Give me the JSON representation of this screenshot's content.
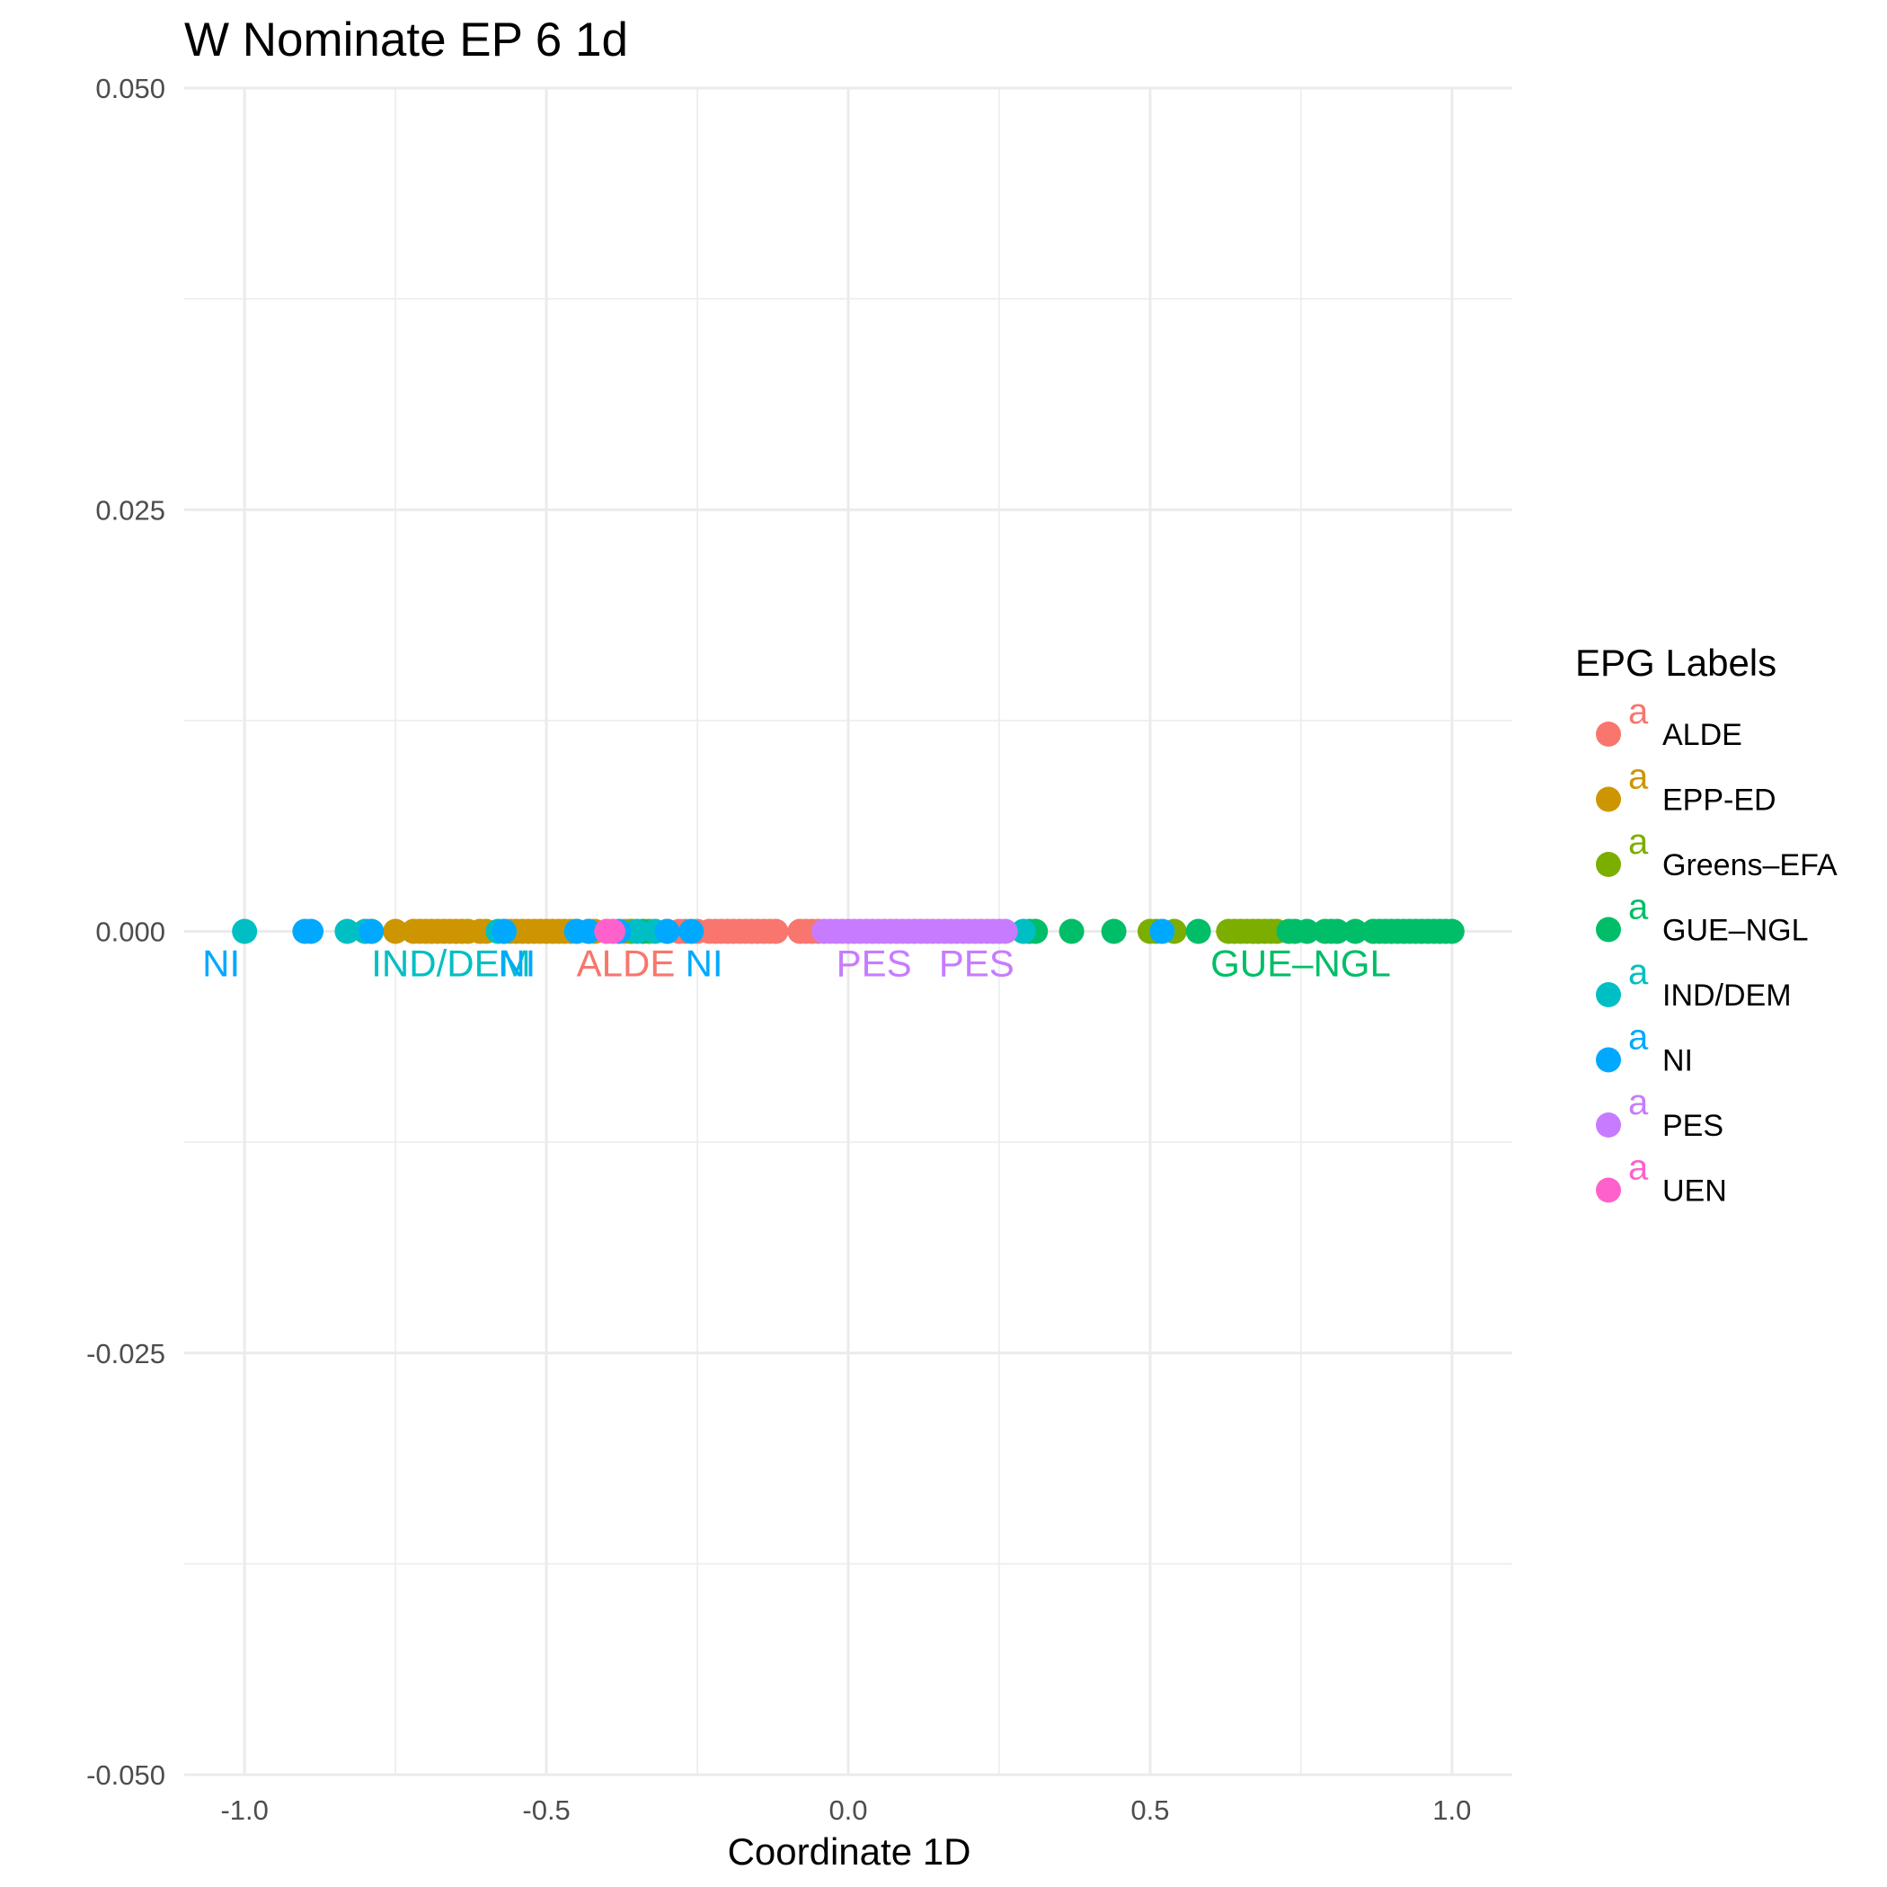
{
  "chart_data": {
    "type": "scatter",
    "title": "W Nominate EP 6 1d",
    "xlabel": "Coordinate 1D",
    "ylabel": "",
    "xlim": [
      -1.1,
      1.1
    ],
    "ylim": [
      -0.05,
      0.05
    ],
    "x_ticks": [
      {
        "value": -1.0,
        "label": "-1.0"
      },
      {
        "value": -0.5,
        "label": "-0.5"
      },
      {
        "value": 0.0,
        "label": "0.0"
      },
      {
        "value": 0.5,
        "label": "0.5"
      },
      {
        "value": 1.0,
        "label": "1.0"
      }
    ],
    "y_ticks": [
      {
        "value": 0.05,
        "label": "0.050"
      },
      {
        "value": 0.025,
        "label": "0.025"
      },
      {
        "value": 0.0,
        "label": "0.000"
      },
      {
        "value": -0.025,
        "label": "-0.025"
      },
      {
        "value": -0.05,
        "label": "-0.050"
      }
    ],
    "grid": true,
    "legend": {
      "title": "EPG Labels",
      "position": "right",
      "glyph": "a"
    },
    "series": [
      {
        "name": "ALDE",
        "color": "#F8766D",
        "x": [
          -0.4,
          -0.37,
          -0.36,
          -0.3,
          -0.28,
          -0.27,
          -0.25,
          -0.23,
          -0.22,
          -0.21,
          -0.2,
          -0.19,
          -0.18,
          -0.17,
          -0.16,
          -0.15,
          -0.14,
          -0.13,
          -0.12,
          -0.08,
          -0.07,
          -0.06,
          -0.05
        ]
      },
      {
        "name": "EPP-ED",
        "color": "#CD9600",
        "x": [
          -0.8,
          -0.79,
          -0.75,
          -0.72,
          -0.71,
          -0.7,
          -0.69,
          -0.68,
          -0.67,
          -0.66,
          -0.65,
          -0.64,
          -0.63,
          -0.61,
          -0.6,
          -0.57,
          -0.56,
          -0.55,
          -0.54,
          -0.53,
          -0.52,
          -0.51,
          -0.5,
          -0.49,
          -0.48,
          -0.47,
          -0.46,
          -0.45,
          -0.43,
          -0.42
        ]
      },
      {
        "name": "Greens–EFA",
        "color": "#7CAE00",
        "x": [
          -0.36,
          -0.33,
          0.5,
          0.51,
          0.54,
          0.63,
          0.64,
          0.65,
          0.66,
          0.67,
          0.68,
          0.69,
          0.7,
          0.71
        ]
      },
      {
        "name": "GUE–NGL",
        "color": "#00BE67",
        "x": [
          -0.34,
          0.3,
          0.31,
          0.37,
          0.44,
          0.58,
          0.73,
          0.74,
          0.76,
          0.79,
          0.8,
          0.81,
          0.84,
          0.87,
          0.88,
          0.89,
          0.9,
          0.91,
          0.92,
          0.93,
          0.94,
          0.95,
          0.96,
          0.97,
          0.98,
          0.99,
          1.0
        ]
      },
      {
        "name": "IND/DEM",
        "color": "#00BFC4",
        "x": [
          -1.0,
          -0.83,
          -0.8,
          -0.58,
          -0.35,
          -0.32,
          0.29
        ]
      },
      {
        "name": "NI",
        "color": "#00A9FF",
        "x": [
          -0.9,
          -0.89,
          -0.79,
          -0.57,
          -0.45,
          -0.43,
          -0.38,
          -0.3,
          -0.26,
          0.52
        ]
      },
      {
        "name": "PES",
        "color": "#C77CFF",
        "x": [
          -0.04,
          -0.03,
          -0.02,
          -0.01,
          0.0,
          0.01,
          0.02,
          0.03,
          0.04,
          0.05,
          0.06,
          0.07,
          0.08,
          0.09,
          0.1,
          0.11,
          0.12,
          0.13,
          0.14,
          0.15,
          0.16,
          0.17,
          0.18,
          0.19,
          0.2,
          0.21,
          0.22,
          0.23,
          0.24,
          0.25,
          0.26
        ]
      },
      {
        "name": "UEN",
        "color": "#FF61CC",
        "x": [
          -0.4,
          -0.39
        ]
      }
    ],
    "annotations": [
      {
        "text": "NI",
        "x": -1.07,
        "series": "NI"
      },
      {
        "text": "IND/DEM",
        "x": -0.79,
        "series": "IND/DEM"
      },
      {
        "text": "NI",
        "x": -0.58,
        "series": "NI"
      },
      {
        "text": "ALDE",
        "x": -0.45,
        "series": "ALDE"
      },
      {
        "text": "NI",
        "x": -0.27,
        "series": "NI"
      },
      {
        "text": "PES",
        "x": -0.02,
        "series": "PES"
      },
      {
        "text": "PES",
        "x": 0.15,
        "series": "PES"
      },
      {
        "text": "GUE–NGL",
        "x": 0.6,
        "series": "GUE–NGL"
      }
    ]
  }
}
